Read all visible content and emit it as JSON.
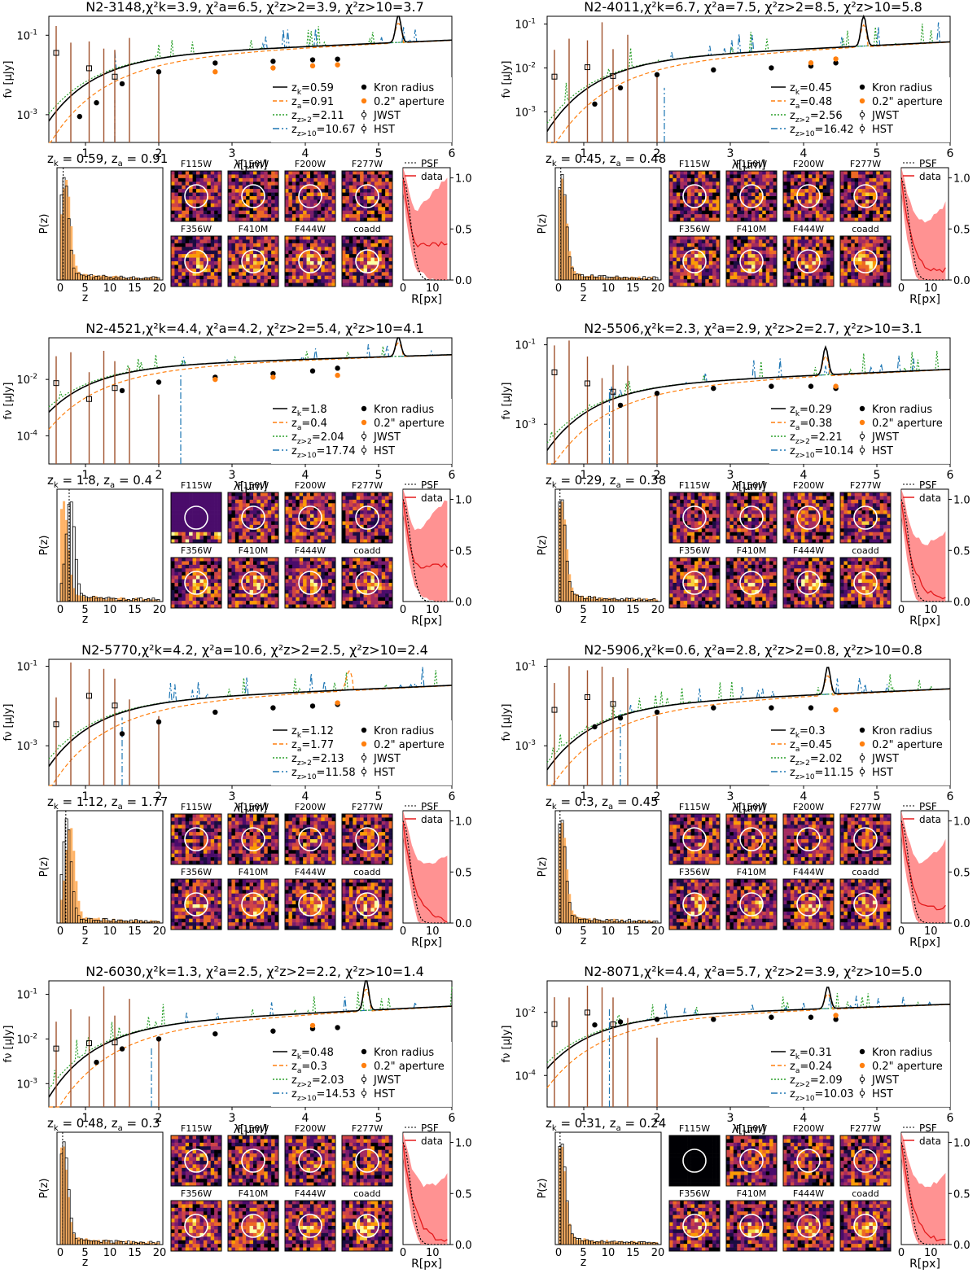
{
  "labels": {
    "lambda_axis": "λ[μm]",
    "flux_axis": "fν [μJy]",
    "pz_axis": "P(z)",
    "z_axis": "z",
    "r_axis": "R[px]",
    "psf": "PSF",
    "data": "data",
    "kron": "Kron radius",
    "aperture": "0.2\" aperture",
    "jwst": "JWST",
    "hst": "HST",
    "filters": [
      "F115W",
      "F150W",
      "F200W",
      "F277W",
      "F356W",
      "F410M",
      "F444W",
      "coadd"
    ]
  },
  "colors": {
    "kron": "#000000",
    "aperture": "#ff7f0e",
    "zgt2": "#2ca02c",
    "zgt10": "#1f77b4",
    "errorbar": "#a0522d",
    "band": "#ff7f7f",
    "profile": "#e41a1c",
    "hist_fill": "#ffb366"
  },
  "chart_data": [
    {
      "type": "sed+pz+profile",
      "id": "N2-3148",
      "title": "N2-3148,χ²k=3.9, χ²a=6.5, χ²z>2=3.9, χ²z>10=3.7",
      "chi2": {
        "k": "3.9",
        "a": "6.5",
        "z2": "3.9",
        "z10": "3.7"
      },
      "zk": "0.59",
      "za": "0.91",
      "z2": "2.11",
      "z10": "10.67",
      "ylim": [
        0.0002,
        0.3
      ],
      "yticks": [
        0.001,
        0.1
      ],
      "xlim": [
        0.5,
        6
      ],
      "xticks": [
        1,
        2,
        3,
        4,
        5,
        6
      ],
      "kron_points": [
        [
          0.92,
          0.0009
        ],
        [
          1.15,
          0.002
        ],
        [
          1.5,
          0.006
        ],
        [
          2.0,
          0.012
        ],
        [
          2.77,
          0.02
        ],
        [
          3.56,
          0.022
        ],
        [
          4.1,
          0.024
        ],
        [
          4.44,
          0.025
        ]
      ],
      "aperture_points": [
        [
          2.77,
          0.012
        ],
        [
          3.56,
          0.015
        ],
        [
          4.1,
          0.017
        ],
        [
          4.44,
          0.018
        ]
      ],
      "pz_pct_zero_line": true,
      "flat_cutoff": 1.4,
      "profile_flat": 0.35,
      "emission_line": 5.27
    },
    {
      "type": "sed+pz+profile",
      "id": "N2-4011",
      "title": "N2-4011,χ²k=6.7, χ²a=7.5, χ²z>2=8.5, χ²z>10=5.8",
      "chi2": {
        "k": "6.7",
        "a": "7.5",
        "z2": "8.5",
        "z10": "5.8"
      },
      "zk": "0.45",
      "za": "0.48",
      "z2": "2.56",
      "z10": "16.42",
      "ylim": [
        0.0002,
        0.15
      ],
      "yticks": [
        0.001,
        0.01,
        0.1
      ],
      "xlim": [
        0.5,
        6
      ],
      "xticks": [
        1,
        2,
        3,
        4,
        5,
        6
      ],
      "kron_points": [
        [
          1.15,
          0.0015
        ],
        [
          1.5,
          0.0035
        ],
        [
          2.0,
          0.007
        ],
        [
          2.77,
          0.009
        ],
        [
          3.56,
          0.01
        ],
        [
          4.1,
          0.011
        ],
        [
          4.44,
          0.013
        ]
      ],
      "aperture_points": [
        [
          4.1,
          0.013
        ],
        [
          4.44,
          0.016
        ]
      ],
      "flat_cutoff": 2.1,
      "profile_flat": 0.1,
      "emission_line": 4.82
    },
    {
      "type": "sed+pz+profile",
      "id": "N2-4521",
      "title": "N2-4521,χ²k=4.4, χ²a=4.2, χ²z>2=5.4, χ²z>10=4.1",
      "chi2": {
        "k": "4.4",
        "a": "4.2",
        "z2": "5.4",
        "z10": "4.1"
      },
      "zk": "1.8",
      "za": "0.4",
      "z2": "2.04",
      "z10": "17.74",
      "ylim": [
        1e-05,
        0.3
      ],
      "yticks": [
        0.0001,
        0.01
      ],
      "xlim": [
        0.5,
        6
      ],
      "xticks": [
        1,
        2,
        3,
        4,
        5,
        6
      ],
      "kron_points": [
        [
          1.5,
          0.004
        ],
        [
          2.0,
          0.008
        ],
        [
          2.77,
          0.012
        ],
        [
          3.56,
          0.016
        ],
        [
          4.1,
          0.02
        ],
        [
          4.44,
          0.025
        ]
      ],
      "aperture_points": [
        [
          2.77,
          0.01
        ],
        [
          3.56,
          0.012
        ],
        [
          4.44,
          0.014
        ]
      ],
      "flat_cutoff": 2.3,
      "profile_flat": 0.35,
      "emission_line": 5.27
    },
    {
      "type": "sed+pz+profile",
      "id": "N2-5506",
      "title": "N2-5506,χ²k=2.3, χ²a=2.9, χ²z>2=2.7, χ²z>10=3.1",
      "chi2": {
        "k": "2.3",
        "a": "2.9",
        "z2": "2.7",
        "z10": "3.1"
      },
      "zk": "0.29",
      "za": "0.38",
      "z2": "2.21",
      "z10": "10.14",
      "ylim": [
        0.0001,
        0.15
      ],
      "yticks": [
        0.001,
        0.1
      ],
      "xlim": [
        0.5,
        6
      ],
      "xticks": [
        1,
        2,
        3,
        4,
        5,
        6
      ],
      "kron_points": [
        [
          1.5,
          0.003
        ],
        [
          2.0,
          0.006
        ],
        [
          2.77,
          0.008
        ],
        [
          3.56,
          0.009
        ],
        [
          4.1,
          0.009
        ],
        [
          4.44,
          0.008
        ]
      ],
      "aperture_points": [
        [
          4.44,
          0.009
        ]
      ],
      "flat_cutoff": 1.35,
      "profile_flat": 0.03,
      "emission_line": 4.3
    },
    {
      "type": "sed+pz+profile",
      "id": "N2-5770",
      "title": "N2-5770,χ²k=4.2, χ²a=10.6, χ²z>2=2.5, χ²z>10=2.4",
      "chi2": {
        "k": "4.2",
        "a": "10.6",
        "z2": "2.5",
        "z10": "2.4"
      },
      "zk": "1.12",
      "za": "1.77",
      "z2": "2.13",
      "z10": "11.58",
      "ylim": [
        0.0001,
        0.15
      ],
      "yticks": [
        0.001,
        0.1
      ],
      "xlim": [
        0.5,
        6
      ],
      "xticks": [
        1,
        2,
        3,
        4,
        5,
        6
      ],
      "kron_points": [
        [
          1.5,
          0.002
        ],
        [
          2.0,
          0.004
        ],
        [
          2.77,
          0.007
        ],
        [
          3.56,
          0.009
        ],
        [
          4.1,
          0.01
        ],
        [
          4.44,
          0.011
        ]
      ],
      "aperture_points": [
        [
          4.44,
          0.012
        ]
      ],
      "flat_cutoff": 1.5,
      "profile_flat": 0.03,
      "emission_line": 0
    },
    {
      "type": "sed+pz+profile",
      "id": "N2-5906",
      "title": "N2-5906,χ²k=0.6, χ²a=2.8, χ²z>2=0.8, χ²z>10=0.8",
      "chi2": {
        "k": "0.6",
        "a": "2.8",
        "z2": "0.8",
        "z10": "0.8"
      },
      "zk": "0.3",
      "za": "0.45",
      "z2": "2.02",
      "z10": "11.15",
      "ylim": [
        0.0001,
        0.15
      ],
      "yticks": [
        0.001,
        0.1
      ],
      "xlim": [
        0.5,
        6
      ],
      "xticks": [
        1,
        2,
        3,
        4,
        5,
        6
      ],
      "kron_points": [
        [
          1.15,
          0.003
        ],
        [
          1.5,
          0.005
        ],
        [
          2.0,
          0.007
        ],
        [
          2.77,
          0.009
        ],
        [
          3.56,
          0.009
        ],
        [
          4.1,
          0.009
        ]
      ],
      "aperture_points": [
        [
          4.44,
          0.008
        ]
      ],
      "flat_cutoff": 1.5,
      "profile_flat": 0.15,
      "emission_line": 4.33
    },
    {
      "type": "sed+pz+profile",
      "id": "N2-6030",
      "title": "N2-6030,χ²k=1.3, χ²a=2.5, χ²z>2=2.2, χ²z>10=1.4",
      "chi2": {
        "k": "1.3",
        "a": "2.5",
        "z2": "2.2",
        "z10": "1.4"
      },
      "zk": "0.48",
      "za": "0.3",
      "z2": "2.03",
      "z10": "14.53",
      "ylim": [
        0.0003,
        0.2
      ],
      "yticks": [
        0.001,
        0.01,
        0.1
      ],
      "xlim": [
        0.5,
        6
      ],
      "xticks": [
        1,
        2,
        3,
        4,
        5,
        6
      ],
      "kron_points": [
        [
          1.15,
          0.003
        ],
        [
          1.5,
          0.006
        ],
        [
          2.0,
          0.01
        ],
        [
          2.77,
          0.013
        ],
        [
          3.56,
          0.015
        ],
        [
          4.1,
          0.017
        ],
        [
          4.44,
          0.018
        ]
      ],
      "aperture_points": [
        [
          4.1,
          0.02
        ]
      ],
      "flat_cutoff": 1.9,
      "profile_flat": 0.05,
      "emission_line": 4.83
    },
    {
      "type": "sed+pz+profile",
      "id": "N2-8071",
      "title": "N2-8071,χ²k=4.4, χ²a=5.7, χ²z>2=3.9, χ²z>10=5.0",
      "chi2": {
        "k": "4.4",
        "a": "5.7",
        "z2": "3.9",
        "z10": "5.0"
      },
      "zk": "0.31",
      "za": "0.24",
      "z2": "2.09",
      "z10": "10.03",
      "ylim": [
        1e-05,
        0.1
      ],
      "yticks": [
        0.0001,
        0.01
      ],
      "xlim": [
        0.5,
        6
      ],
      "xticks": [
        1,
        2,
        3,
        4,
        5,
        6
      ],
      "kron_points": [
        [
          1.15,
          0.004
        ],
        [
          1.5,
          0.005
        ],
        [
          2.0,
          0.006
        ],
        [
          2.77,
          0.006
        ],
        [
          3.56,
          0.007
        ],
        [
          4.1,
          0.007
        ],
        [
          4.44,
          0.006
        ]
      ],
      "aperture_points": [
        [
          4.44,
          0.008
        ]
      ],
      "flat_cutoff": 1.35,
      "profile_flat": 0.05,
      "emission_line": 4.33
    }
  ]
}
